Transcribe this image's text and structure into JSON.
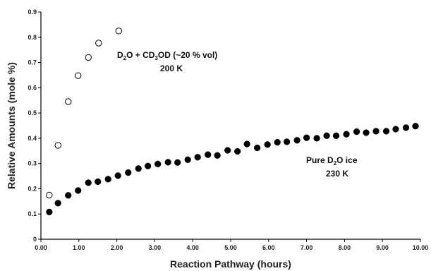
{
  "chart_data": {
    "type": "scatter",
    "xlabel": "Reaction Pathway (hours)",
    "ylabel": "Relative Amounts (mole %)",
    "xlim": [
      0,
      10
    ],
    "ylim": [
      0,
      0.9
    ],
    "x_ticks": [
      "0.00",
      "1.00",
      "2.00",
      "3.00",
      "4.00",
      "5.00",
      "6.00",
      "7.00",
      "8.00",
      "9.00",
      "10.00"
    ],
    "y_ticks": [
      "0",
      "0.1",
      "0.2",
      "0.3",
      "0.4",
      "0.5",
      "0.6",
      "0.7",
      "0.8",
      "0.9"
    ],
    "grid": false,
    "series": [
      {
        "marker": "open-circle",
        "color": "#000000",
        "x": [
          0.22,
          0.45,
          0.72,
          0.98,
          1.25,
          1.52,
          2.05
        ],
        "y": [
          0.175,
          0.372,
          0.545,
          0.648,
          0.72,
          0.777,
          0.825
        ]
      },
      {
        "marker": "filled-circle",
        "color": "#000000",
        "x": [
          0.22,
          0.45,
          0.72,
          0.98,
          1.25,
          1.5,
          1.77,
          2.03,
          2.3,
          2.57,
          2.82,
          3.08,
          3.35,
          3.6,
          3.87,
          4.13,
          4.4,
          4.65,
          4.92,
          5.18,
          5.43,
          5.7,
          5.97,
          6.23,
          6.48,
          6.75,
          7.0,
          7.27,
          7.53,
          7.78,
          8.05,
          8.32,
          8.57,
          8.83,
          9.1,
          9.35,
          9.62,
          9.87
        ],
        "y": [
          0.108,
          0.143,
          0.174,
          0.193,
          0.224,
          0.228,
          0.238,
          0.252,
          0.264,
          0.28,
          0.29,
          0.298,
          0.305,
          0.304,
          0.315,
          0.325,
          0.335,
          0.332,
          0.352,
          0.348,
          0.377,
          0.362,
          0.375,
          0.384,
          0.386,
          0.392,
          0.402,
          0.4,
          0.41,
          0.41,
          0.416,
          0.426,
          0.422,
          0.428,
          0.428,
          0.436,
          0.442,
          0.448
        ]
      }
    ]
  },
  "annotations": {
    "a1_line1": {
      "D": "D",
      "sub1": "2",
      "mid": "O + CD",
      "sub2": "3",
      "tail": "OD (~20 % vol)"
    },
    "a1_line2": "200 K",
    "a2_line1": {
      "pre": "Pure D",
      "sub": "2",
      "post": "O ice"
    },
    "a2_line2": "230 K"
  }
}
